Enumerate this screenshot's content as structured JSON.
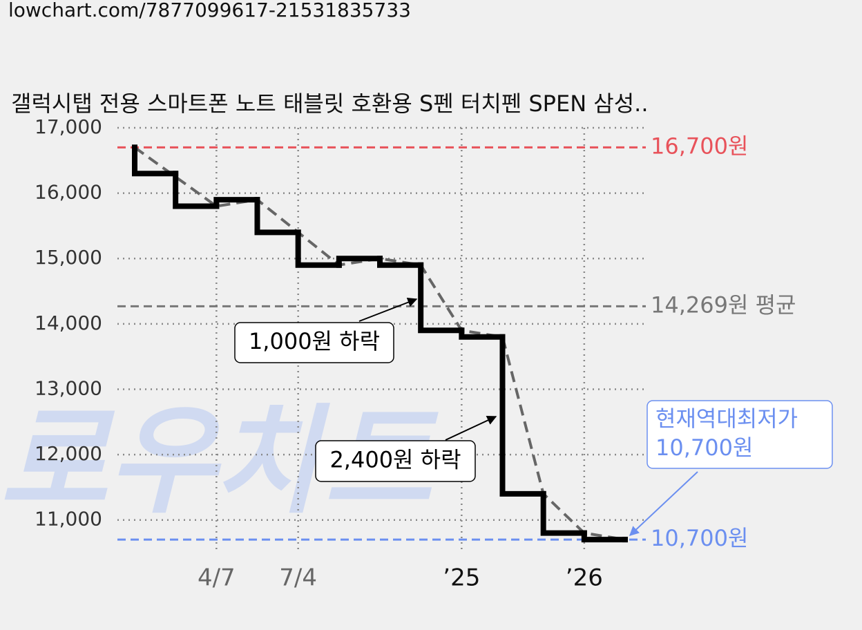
{
  "url": "lowchart.com/7877099617-21531835733",
  "chart_data": {
    "type": "step",
    "title": "갤럭시탭 전용 스마트폰 노트 태블릿 호환용 S펜 터치펜 SPEN 삼성..",
    "watermark": "로우차트",
    "x": [
      0,
      0,
      1,
      2,
      3,
      4,
      5,
      6,
      7,
      8,
      9,
      10,
      11,
      12
    ],
    "values": [
      16700,
      16300,
      15800,
      15900,
      15400,
      14900,
      15000,
      14900,
      13900,
      13800,
      11400,
      10800,
      10700,
      10700
    ],
    "color": "#000000",
    "trend": {
      "color": "#666666",
      "x": [
        0,
        2,
        3,
        4,
        5,
        6,
        7,
        8,
        9,
        10,
        11,
        12
      ],
      "values": [
        16700,
        15800,
        15900,
        15400,
        14900,
        15000,
        14900,
        13900,
        13800,
        11400,
        10800,
        10700
      ]
    },
    "xlim": [
      0,
      12
    ],
    "xticks": [
      {
        "value": 2,
        "label": "4/7"
      },
      {
        "value": 4,
        "label": "7/4"
      },
      {
        "value": 8,
        "label": "’25"
      },
      {
        "value": 11,
        "label": "’26"
      }
    ],
    "ylim": [
      10500,
      17000
    ],
    "yticks": [
      {
        "value": 11000,
        "label": "11,000"
      },
      {
        "value": 12000,
        "label": "12,000"
      },
      {
        "value": 13000,
        "label": "13,000"
      },
      {
        "value": 14000,
        "label": "14,000"
      },
      {
        "value": 15000,
        "label": "15,000"
      },
      {
        "value": 16000,
        "label": "16,000"
      },
      {
        "value": 17000,
        "label": "17,000"
      }
    ],
    "grid": true,
    "ref_lines": [
      {
        "value": 16700,
        "label": "16,700원",
        "color": "#e8525a"
      },
      {
        "value": 14269,
        "label": "14,269원 평균",
        "color": "#777777"
      },
      {
        "value": 10700,
        "label": "10,700원",
        "color": "#6b8ff0"
      }
    ],
    "annotations": [
      {
        "text": [
          "1,000원 하락"
        ],
        "color": "#000000"
      },
      {
        "text": [
          "2,400원 하락"
        ],
        "color": "#000000"
      },
      {
        "text": [
          "현재역대최저가",
          "10,700원"
        ],
        "color": "#6b8ff0"
      }
    ]
  }
}
